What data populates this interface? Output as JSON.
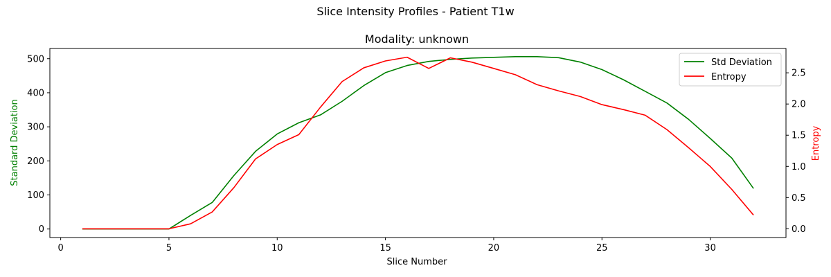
{
  "chart_data": {
    "type": "line",
    "title": "Slice Intensity Profiles - Patient T1w",
    "subtitle": "Modality: unknown",
    "xlabel": "Slice Number",
    "ylabel_left": "Standard Deviation",
    "ylabel_right": "Entropy",
    "xlim": [
      -0.5,
      33.5
    ],
    "ylim_left": [
      -25,
      530
    ],
    "ylim_right": [
      -0.14,
      2.89
    ],
    "x_ticks": [
      0,
      5,
      10,
      15,
      20,
      25,
      30
    ],
    "y_left_ticks": [
      0,
      100,
      200,
      300,
      400,
      500
    ],
    "y_right_ticks": [
      0.0,
      0.5,
      1.0,
      1.5,
      2.0,
      2.5
    ],
    "y_right_tick_labels": [
      "0.0",
      "0.5",
      "1.0",
      "1.5",
      "2.0",
      "2.5"
    ],
    "grid": false,
    "legend_position": "top-right",
    "x": [
      1,
      2,
      3,
      4,
      5,
      6,
      7,
      8,
      9,
      10,
      11,
      12,
      13,
      14,
      15,
      16,
      17,
      18,
      19,
      20,
      21,
      22,
      23,
      24,
      25,
      26,
      27,
      28,
      29,
      30,
      31,
      32
    ],
    "series": [
      {
        "name": "Std Deviation",
        "axis": "left",
        "color": "#008000",
        "values": [
          0,
          0,
          0,
          0,
          0,
          40,
          78,
          157,
          228,
          279,
          312,
          335,
          375,
          421,
          459,
          480,
          492,
          498,
          502,
          504,
          506,
          506,
          503,
          490,
          468,
          438,
          404,
          370,
          322,
          266,
          208,
          119
        ]
      },
      {
        "name": "Entropy",
        "axis": "right",
        "color": "#ff0000",
        "values": [
          0,
          0,
          0,
          0,
          0,
          0.08,
          0.27,
          0.66,
          1.12,
          1.35,
          1.51,
          1.95,
          2.36,
          2.58,
          2.69,
          2.75,
          2.57,
          2.74,
          2.67,
          2.57,
          2.47,
          2.31,
          2.21,
          2.12,
          1.99,
          1.91,
          1.82,
          1.59,
          1.3,
          1.0,
          0.63,
          0.22
        ]
      }
    ]
  }
}
